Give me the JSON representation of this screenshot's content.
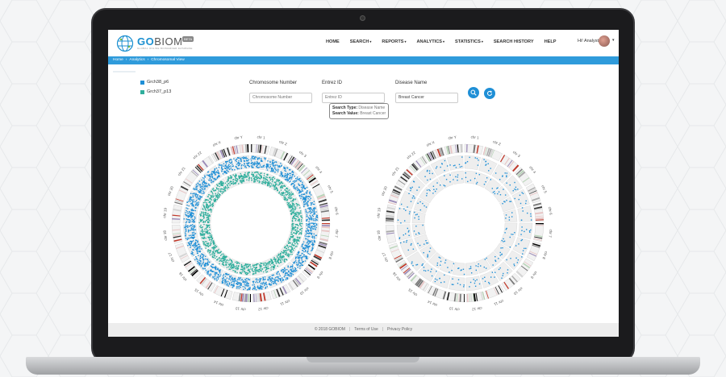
{
  "app": {
    "logo_go": "GO",
    "logo_biom": "BIOM",
    "logo_tagline": "GLOBAL ONLINE BIOMARKER DATABASE",
    "logo_badge": "BETA",
    "user_greeting": "Hi! Analyst"
  },
  "nav": [
    {
      "label": "HOME",
      "dropdown": false
    },
    {
      "label": "SEARCH",
      "dropdown": true
    },
    {
      "label": "REPORTS",
      "dropdown": true
    },
    {
      "label": "ANALYTICS",
      "dropdown": true
    },
    {
      "label": "STATISTICS",
      "dropdown": true
    },
    {
      "label": "SEARCH HISTORY",
      "dropdown": false
    },
    {
      "label": "HELP",
      "dropdown": false
    }
  ],
  "breadcrumb": [
    "Home",
    "Analytics",
    "Chromosomal View"
  ],
  "legend": [
    {
      "label": "Grch38_p6",
      "color": "#1f8fd6"
    },
    {
      "label": "Grch37_p13",
      "color": "#2fae9c"
    }
  ],
  "form": {
    "chromosome": {
      "label": "Chromosome Number",
      "placeholder": "Chromosome Number",
      "value": ""
    },
    "entrez": {
      "label": "Entrez ID",
      "placeholder": "Entrez ID",
      "value": ""
    },
    "disease": {
      "label": "Disease Name",
      "placeholder": "Disease Name",
      "value": "Breast Cancer"
    }
  },
  "search_info": {
    "type_label": "Search Type:",
    "type_value": "Disease Name",
    "value_label": "Search Value:",
    "value_value": "Breast Cancer"
  },
  "buttons": {
    "search_icon": "search-icon",
    "refresh_icon": "refresh-icon"
  },
  "chromosomes": [
    "chr 1",
    "chr 2",
    "chr 3",
    "chr 4",
    "chr 5",
    "chr 6",
    "chr 7",
    "chr 8",
    "chr 9",
    "chr 10",
    "chr 11",
    "chr 12",
    "chr 13",
    "chr 14",
    "chr 15",
    "chr 16",
    "chr 17",
    "chr 18",
    "chr 19",
    "chr 20",
    "chr 21",
    "chr 22",
    "chr X",
    "chr Y"
  ],
  "footer": {
    "copyright": "© 2018 GOBIOM",
    "terms": "Terms of Use",
    "privacy": "Privacy Policy"
  },
  "colors": {
    "accent": "#1f8fd6",
    "teal": "#2fae9c",
    "breadcrumb_bar": "#2f9bdb",
    "footer_bg": "#ededed"
  }
}
